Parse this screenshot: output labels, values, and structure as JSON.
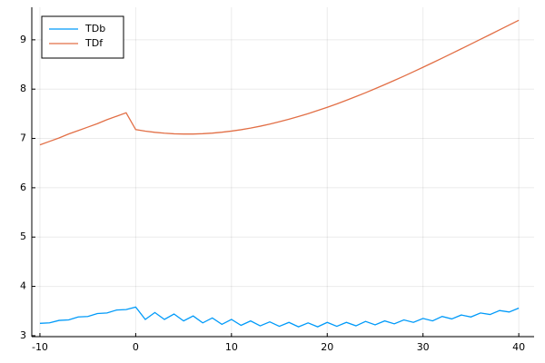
{
  "chart_data": {
    "type": "line",
    "x": [
      -10,
      -9,
      -8,
      -7,
      -6,
      -5,
      -4,
      -3,
      -2,
      -1,
      0,
      1,
      2,
      3,
      4,
      5,
      6,
      7,
      8,
      9,
      10,
      11,
      12,
      13,
      14,
      15,
      16,
      17,
      18,
      19,
      20,
      21,
      22,
      23,
      24,
      25,
      26,
      27,
      28,
      29,
      30,
      31,
      32,
      33,
      34,
      35,
      36,
      37,
      38,
      39,
      40
    ],
    "series": [
      {
        "name": "TDb",
        "color": "#009af9",
        "values": [
          3.25,
          3.26,
          3.31,
          3.32,
          3.38,
          3.39,
          3.45,
          3.46,
          3.52,
          3.53,
          3.58,
          3.33,
          3.47,
          3.33,
          3.44,
          3.3,
          3.4,
          3.26,
          3.36,
          3.23,
          3.33,
          3.21,
          3.3,
          3.2,
          3.28,
          3.19,
          3.27,
          3.18,
          3.26,
          3.18,
          3.27,
          3.19,
          3.27,
          3.2,
          3.29,
          3.22,
          3.3,
          3.24,
          3.32,
          3.27,
          3.35,
          3.3,
          3.39,
          3.34,
          3.42,
          3.38,
          3.46,
          3.43,
          3.51,
          3.48,
          3.56
        ]
      },
      {
        "name": "TDf",
        "color": "#e26f46",
        "values": [
          6.87,
          6.94,
          7.01,
          7.09,
          7.16,
          7.23,
          7.3,
          7.38,
          7.45,
          7.52,
          7.18,
          7.148,
          7.124,
          7.106,
          7.094,
          7.089,
          7.089,
          7.096,
          7.108,
          7.126,
          7.149,
          7.177,
          7.21,
          7.248,
          7.291,
          7.338,
          7.389,
          7.444,
          7.503,
          7.566,
          7.632,
          7.701,
          7.774,
          7.849,
          7.927,
          8.008,
          8.091,
          8.176,
          8.263,
          8.352,
          8.443,
          8.535,
          8.628,
          8.722,
          8.818,
          8.913,
          9.01,
          9.106,
          9.203,
          9.3,
          9.396
        ]
      }
    ],
    "xlim": [
      -10.85,
      41.6
    ],
    "xticks": [
      -10,
      0,
      10,
      20,
      30,
      40
    ],
    "ylim": [
      2.98,
      9.66
    ],
    "yticks": [
      3,
      4,
      5,
      6,
      7,
      8,
      9
    ],
    "grid": true,
    "legend": "top-left"
  }
}
